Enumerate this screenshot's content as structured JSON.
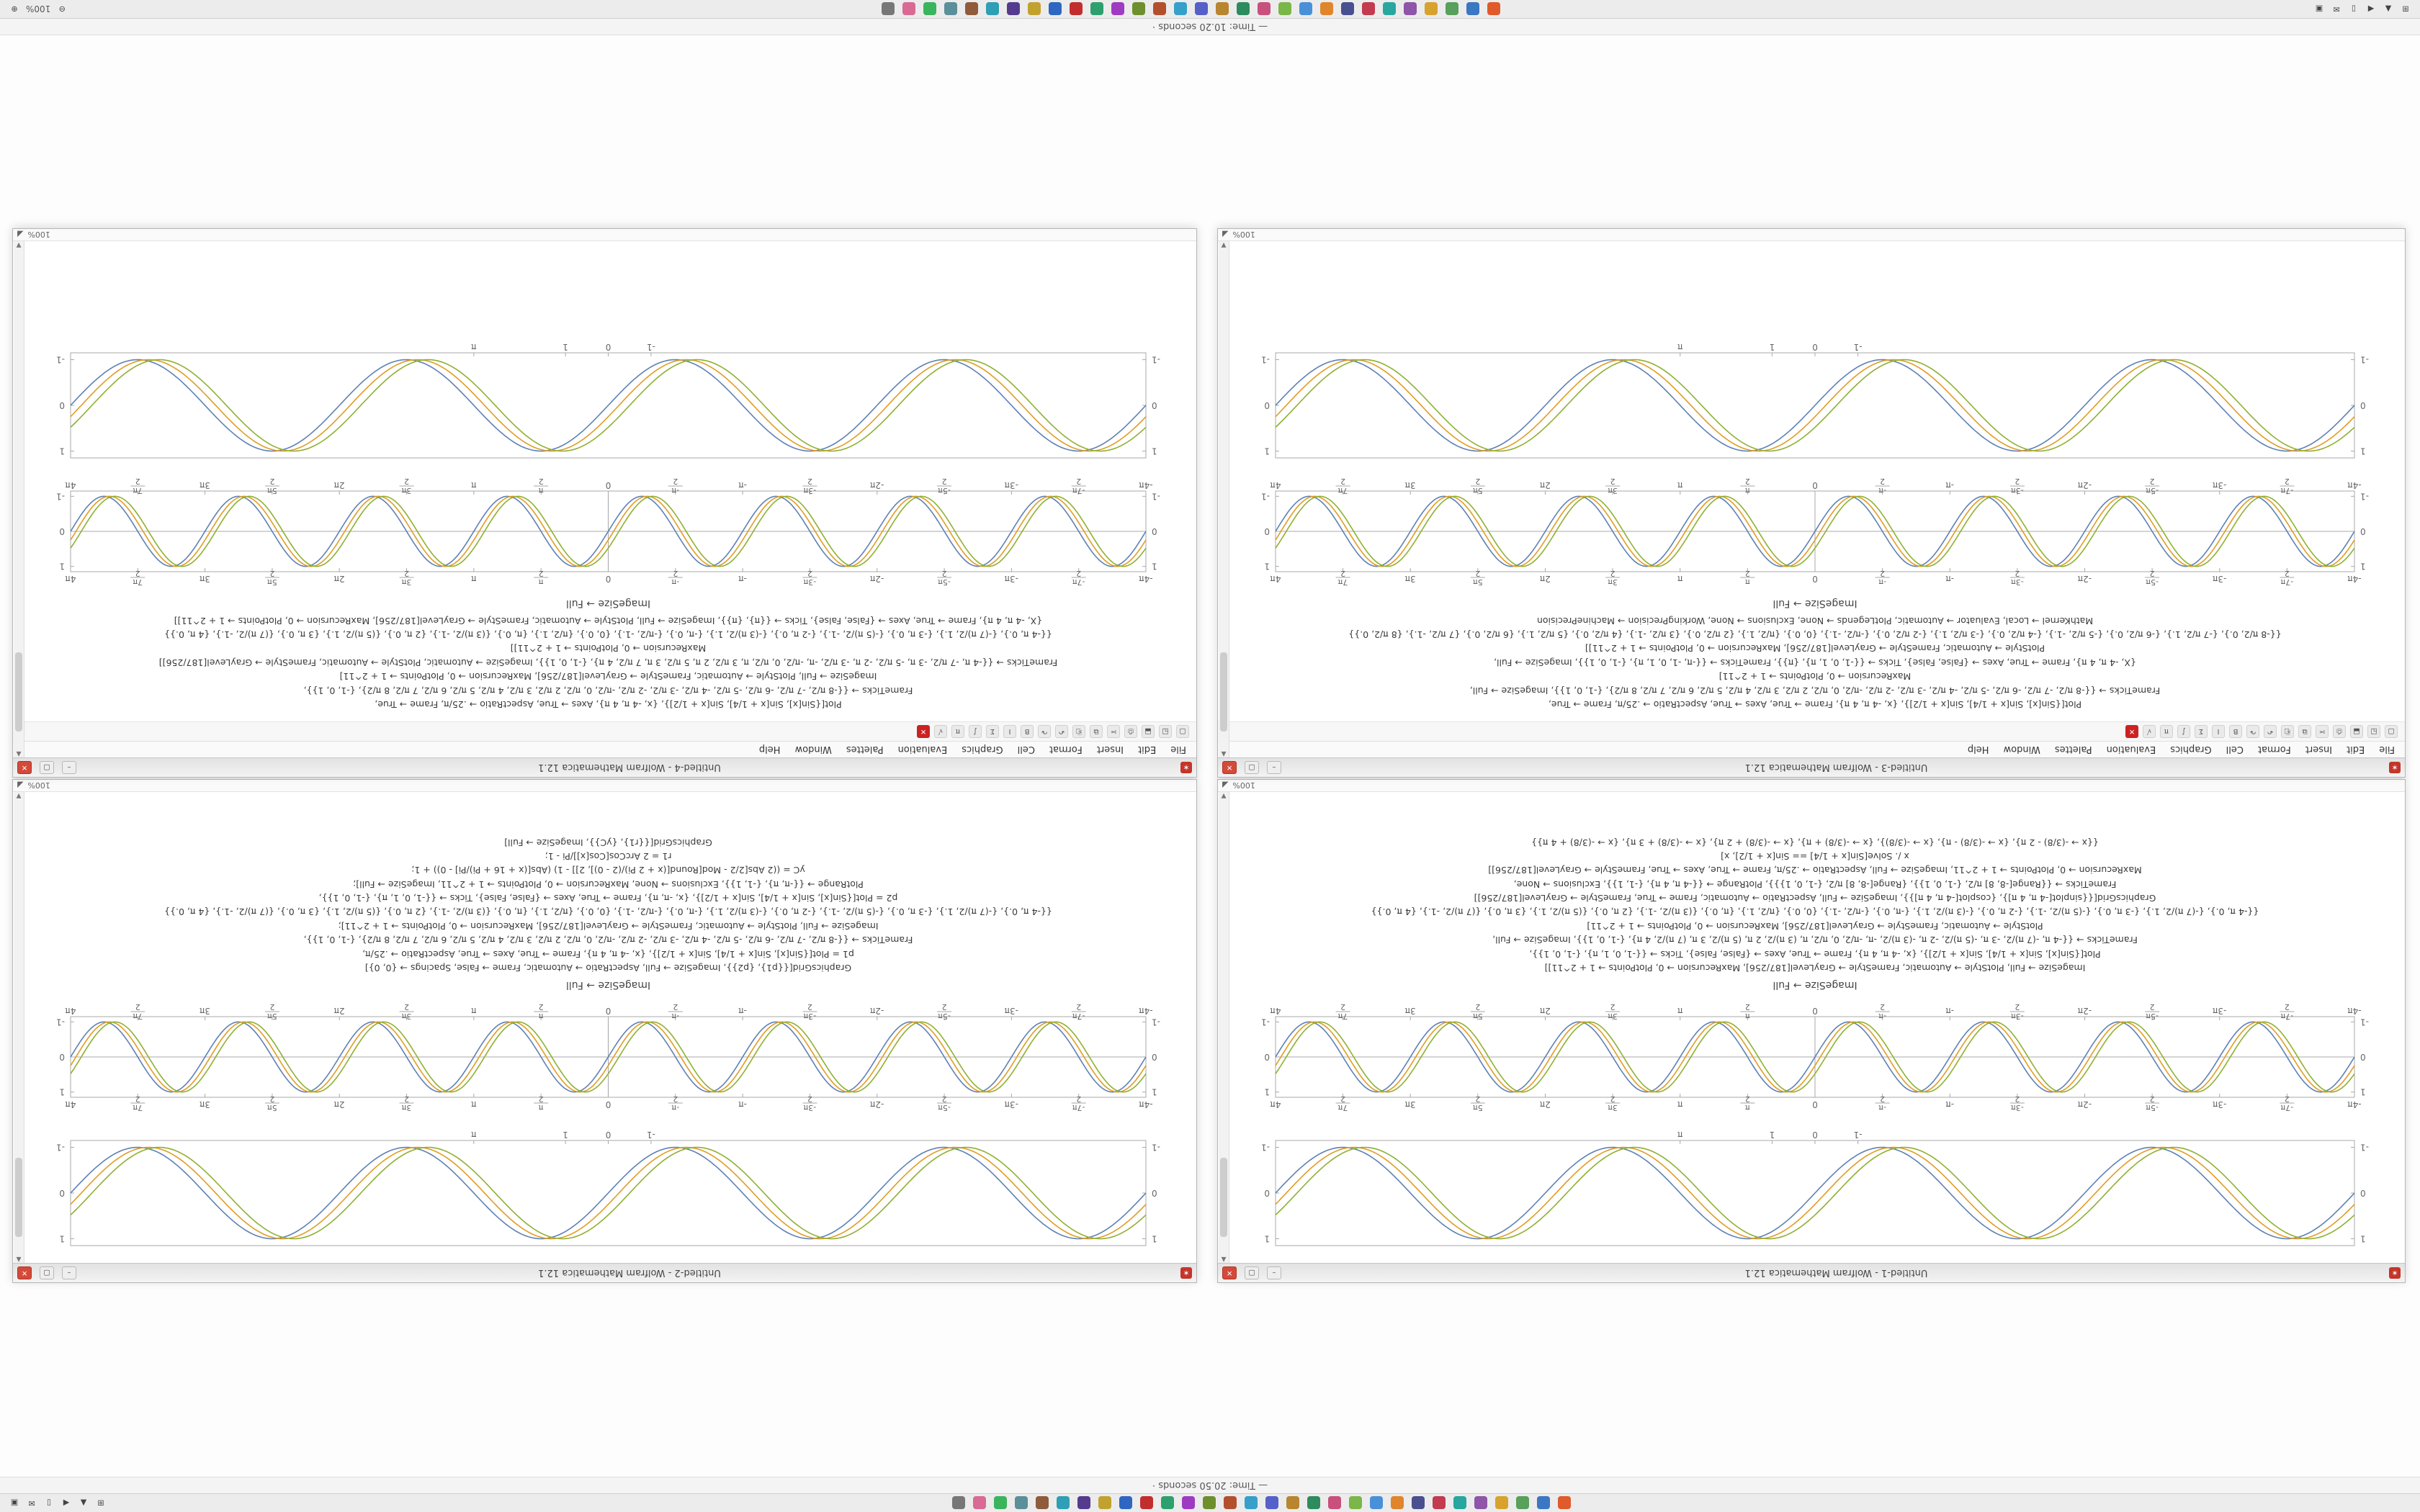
{
  "app": "Wolfram Mathematica 12.1",
  "status": {
    "magnification": "100%"
  },
  "top_bar": {
    "text": "— Time: 20.50 seconds ·"
  },
  "bottom_bar": {
    "text": "— Time: 10.20 seconds ·"
  },
  "window_chrome": {
    "spikey": "✶",
    "minimize": "–",
    "maximize": "▢",
    "close": "✕",
    "scroll_up": "▲",
    "scroll_down": "▼",
    "resize_grip": "◢"
  },
  "menu": {
    "items": [
      "File",
      "Edit",
      "Insert",
      "Format",
      "Cell",
      "Graphics",
      "Evaluation",
      "Palettes",
      "Window",
      "Help"
    ]
  },
  "toolbar": {
    "icons": [
      {
        "name": "new-notebook-icon",
        "glyph": "▢"
      },
      {
        "name": "open-icon",
        "glyph": "◱"
      },
      {
        "name": "save-icon",
        "glyph": "⬓"
      },
      {
        "name": "print-icon",
        "glyph": "⎙"
      },
      {
        "name": "cut-icon",
        "glyph": "✂"
      },
      {
        "name": "copy-icon",
        "glyph": "⧉"
      },
      {
        "name": "paste-icon",
        "glyph": "⎗"
      },
      {
        "name": "undo-icon",
        "glyph": "↶"
      },
      {
        "name": "redo-icon",
        "glyph": "↷"
      },
      {
        "name": "bold-icon",
        "glyph": "B"
      },
      {
        "name": "italic-icon",
        "glyph": "I"
      },
      {
        "name": "sum-icon",
        "glyph": "Σ"
      },
      {
        "name": "integral-icon",
        "glyph": "∫"
      },
      {
        "name": "pi-icon",
        "glyph": "π"
      },
      {
        "name": "sqrt-icon",
        "glyph": "√"
      },
      {
        "name": "abort-evaluation-icon",
        "glyph": "✕",
        "color": "#cc2222"
      }
    ]
  },
  "windows": [
    {
      "title": "Untitled-1 - Wolfram Mathematica 12.1"
    },
    {
      "title": "Untitled-2 - Wolfram Mathematica 12.1"
    },
    {
      "title": "Untitled-3 - Wolfram Mathematica 12.1"
    },
    {
      "title": "Untitled-4 - Wolfram Mathematica 12.1"
    }
  ],
  "captions": {
    "imagesize_full": "ImageSize → Full",
    "graphics_grid": "GraphicsGrid"
  },
  "code_blocks": {
    "upper_left": [
      "ImageSize → Full, PlotStyle → Automatic, FrameStyle → GrayLevel[187/256], MaxRecursion → 0, PlotPoints → 1 + 2^11]]",
      "Plot[{Sin[x], Sin[x + 1/4], Sin[x + 1/2]}, {x, -4 π, 4 π}, Frame → True, Axes → {False, False}, Ticks → {{-1, 0, 1, π}, {-1, 0, 1}},",
      "FrameTicks → {{-4 π, -(7 π)/2, -3 π, -(5 π)/2, -2 π, -(3 π)/2, -π, -π/2, 0, π/2, π, (3 π)/2, 2 π, (5 π)/2, 3 π, (7 π)/2, 4 π}, {-1, 0, 1}}, ImageSize → Full,",
      "PlotStyle → Automatic, FrameStyle → GrayLevel[187/256], MaxRecursion → 0, PlotPoints → 1 + 2^11]",
      "{{-4 π, 0.}, {-(7 π)/2, 1.}, {-3 π, 0.}, {-(5 π)/2, -1.}, {-2 π, 0.}, {-(3 π)/2, 1.}, {-π, 0.}, {-π/2, -1.}, {0, 0.}, {π/2, 1.}, {π, 0.}, {(3 π)/2, -1.}, {2 π, 0.}, {(5 π)/2, 1.}, {3 π, 0.}, {(7 π)/2, -1.}, {4 π, 0.}}",
      "GraphicsGrid[{{sinplot[-4 π, 4 π]}, {cosplot[-4 π, 4 π]}}, ImageSize → Full, AspectRatio → Automatic, Frame → True, FrameStyle → GrayLevel[187/256]]",
      "FrameTicks → {{Range[-8, 8] π/2, {-1, 0, 1}}, {Range[-8, 8] π/2, {-1, 0, 1}}}, PlotRange → {{-4 π, 4 π}, {-1, 1}}, Exclusions → None,",
      "MaxRecursion → 0, PlotPoints → 1 + 2^11, ImageSize → Full, AspectRatio → .25/π, Frame → True, Axes → True, FrameStyle → GrayLevel[187/256]]",
      "x /. Solve[Sin[x + 1/4] == Sin[x + 1/2], x]",
      "{{x → -(3/8) - 2 π}, {x → -(3/8) - π}, {x → -(3/8)}, {x → -(3/8) + π}, {x → -(3/8) + 2 π}, {x → -(3/8) + 3 π}, {x → -(3/8) + 4 π}}"
    ],
    "upper_right": [
      "GraphicsGrid[{{p1}, {p2}}, ImageSize → Full, AspectRatio → Automatic, Frame → False, Spacings → {0, 0}]",
      "p1 = Plot[{Sin[x], Sin[x + 1/4], Sin[x + 1/2]}, {x, -4 π, 4 π}, Frame → True, Axes → True, AspectRatio → .25/π,",
      "FrameTicks → {{-8 π/2, -7 π/2, -6 π/2, -5 π/2, -4 π/2, -3 π/2, -2 π/2, -π/2, 0, π/2, 2 π/2, 3 π/2, 4 π/2, 5 π/2, 6 π/2, 7 π/2, 8 π/2}, {-1, 0, 1}},",
      "ImageSize → Full, PlotStyle → Automatic, FrameStyle → GrayLevel[187/256], MaxRecursion → 0, PlotPoints → 1 + 2^11];",
      "{{-4 π, 0.}, {-(7 π)/2, 1.}, {-3 π, 0.}, {-(5 π)/2, -1.}, {-2 π, 0.}, {-(3 π)/2, 1.}, {-π, 0.}, {-π/2, -1.}, {0, 0.}, {π/2, 1.}, {π, 0.}, {(3 π)/2, -1.}, {2 π, 0.}, {(5 π)/2, 1.}, {3 π, 0.}, {(7 π)/2, -1.}, {4 π, 0.}}",
      "p2 = Plot[{Sin[x], Sin[x + 1/4], Sin[x + 1/2]}, {x, -π, π}, Frame → True, Axes → {False, False}, Ticks → {{-1, 0, 1, π}, {-1, 0, 1}},",
      "PlotRange → {{-π, π}, {-1, 1}}, Exclusions → None, MaxRecursion → 0, PlotPoints → 1 + 2^11, ImageSize → Full];",
      "yC = ((2 Abs[2/2 - Mod[Round[(x + 2 Pi)/(2 - 0)], 2]] - 1) (Abs[(x + 16 + Pi)/Pi] - 0)) + 1;",
      "r1 = 2 ArcCos[Cos[x]]/Pi - 1;",
      "GraphicsGrid[{{r1}, {yC}}, ImageSize → Full]"
    ],
    "lower_left": [
      "Plot[{Sin[x], Sin[x + 1/4], Sin[x + 1/2]}, {x, -4 π, 4 π}, Frame → True, Axes → True, AspectRatio → .25/π, Frame → True,",
      "FrameTicks → {{-8 π/2, -7 π/2, -6 π/2, -5 π/2, -4 π/2, -3 π/2, -2 π/2, -π/2, 0, π/2, 2 π/2, 3 π/2, 4 π/2, 5 π/2, 6 π/2, 7 π/2, 8 π/2}, {-1, 0, 1}}, ImageSize → Full,",
      "MaxRecursion → 0, PlotPoints → 1 + 2^11]",
      "{X, -4 π, 4 π}, Frame → True, Axes → {False, False}, Ticks → {{-1, 0, 1, π}, {π}}, FrameTicks → {{-π, -1, 0, 1, π}, {-1, 0, 1}}, ImageSize → Full,",
      "PlotStyle → Automatic, FrameStyle → GrayLevel[187/256], MaxRecursion → 0, PlotPoints → 1 + 2^11]]",
      "{{-8 π/2, 0.}, {-7 π/2, 1.}, {-6 π/2, 0.}, {-5 π/2, -1.}, {-4 π/2, 0.}, {-3 π/2, 1.}, {-2 π/2, 0.}, {-π/2, -1.}, {0, 0.}, {π/2, 1.}, {2 π/2, 0.}, {3 π/2, -1.}, {4 π/2, 0.}, {5 π/2, 1.}, {6 π/2, 0.}, {7 π/2, -1.}, {8 π/2, 0.}}",
      "MathKernel → Local, Evaluator → Automatic, PlotLegends → None, Exclusions → None, WorkingPrecision → MachinePrecision"
    ],
    "lower_right": [
      "Plot[{Sin[x], Sin[x + 1/4], Sin[x + 1/2]}, {x, -4 π, 4 π}, Axes → True, AspectRatio → .25/π, Frame → True,",
      "FrameTicks → {{-8 π/2, -7 π/2, -6 π/2, -5 π/2, -4 π/2, -3 π/2, -2 π/2, -π/2, 0, π/2, 2 π/2, 3 π/2, 4 π/2, 5 π/2, 6 π/2, 7 π/2, 8 π/2}, {-1, 0, 1}},",
      "ImageSize → Full, PlotStyle → Automatic, FrameStyle → GrayLevel[187/256], MaxRecursion → 0, PlotPoints → 1 + 2^11]",
      "FrameTicks → {{-4 π, -7 π/2, -3 π, -5 π/2, -2 π, -3 π/2, -π, -π/2, 0, π/2, π, 3 π/2, 2 π, 5 π/2, 3 π, 7 π/2, 4 π}, {-1, 0, 1}}, ImageSize → Automatic, PlotStyle → Automatic, FrameStyle → GrayLevel[187/256]]",
      "MaxRecursion → 0, PlotPoints → 1 + 2^11]]",
      "{{-4 π, 0.}, {-(7 π)/2, 1.}, {-3 π, 0.}, {-(5 π)/2, -1.}, {-2 π, 0.}, {-(3 π)/2, 1.}, {-π, 0.}, {-π/2, -1.}, {0, 0.}, {π/2, 1.}, {π, 0.}, {(3 π)/2, -1.}, {2 π, 0.}, {(5 π)/2, 1.}, {3 π, 0.}, {(7 π)/2, -1.}, {4 π, 0.}}",
      "{X, -4 π, 4 π}, Frame → True, Axes → {False, False}, Ticks → {{π}, {π}}, ImageSize → Full, PlotStyle → Automatic, FrameStyle → GrayLevel[187/256], MaxRecursion → 0, PlotPoints → 1 + 2^11]]"
    ]
  },
  "chart_data": [
    {
      "id": "framed",
      "type": "line",
      "title": "",
      "xlabel": "",
      "ylabel": "",
      "x_range": [
        -12.566,
        12.566
      ],
      "y_range": [
        -1,
        1
      ],
      "frame": true,
      "center_axes": false,
      "top_labels": false,
      "frame_color": "#a8a8a8",
      "freq": 1,
      "series": [
        {
          "name": "Sin[x]",
          "phase": 0,
          "color": "#5e81b5"
        },
        {
          "name": "Sin[x + 1/4]",
          "phase": 0.25,
          "color": "#e19c24"
        },
        {
          "name": "Sin[x + 1/2]",
          "phase": 0.5,
          "color": "#8fb032"
        }
      ],
      "x_ticks": [
        {
          "v": -1,
          "label": "-1"
        },
        {
          "v": 0,
          "label": "0"
        },
        {
          "v": 1,
          "label": "1"
        },
        {
          "v": 3.1416,
          "label": "π"
        }
      ],
      "y_ticks": [
        {
          "v": -1,
          "label": "-1"
        },
        {
          "v": 0,
          "label": "0"
        },
        {
          "v": 1,
          "label": "1"
        }
      ]
    },
    {
      "id": "pi",
      "type": "line",
      "title": "",
      "xlabel": "",
      "ylabel": "",
      "x_range": [
        -12.566,
        12.566
      ],
      "y_range": [
        -1,
        1
      ],
      "frame": true,
      "center_axes": true,
      "top_labels": true,
      "frame_color": "#a8a8a8",
      "freq": 2,
      "series": [
        {
          "name": "Sin[x]",
          "phase": 0,
          "color": "#5e81b5"
        },
        {
          "name": "Sin[x + 1/4]",
          "phase": 0.25,
          "color": "#e19c24"
        },
        {
          "name": "Sin[x + 1/2]",
          "phase": 0.5,
          "color": "#8fb032"
        }
      ],
      "x_ticks": [
        {
          "v": -12.566,
          "label": "-4π"
        },
        {
          "v": -10.996,
          "label": "-7π/2"
        },
        {
          "v": -9.4248,
          "label": "-3π"
        },
        {
          "v": -7.854,
          "label": "-5π/2"
        },
        {
          "v": -6.2832,
          "label": "-2π"
        },
        {
          "v": -4.7124,
          "label": "-3π/2"
        },
        {
          "v": -3.1416,
          "label": "-π"
        },
        {
          "v": -1.5708,
          "label": "-π/2"
        },
        {
          "v": 0,
          "label": "0"
        },
        {
          "v": 1.5708,
          "label": "π/2"
        },
        {
          "v": 3.1416,
          "label": "π"
        },
        {
          "v": 4.7124,
          "label": "3π/2"
        },
        {
          "v": 6.2832,
          "label": "2π"
        },
        {
          "v": 7.854,
          "label": "5π/2"
        },
        {
          "v": 9.4248,
          "label": "3π"
        },
        {
          "v": 10.996,
          "label": "7π/2"
        },
        {
          "v": 12.566,
          "label": "4π"
        }
      ],
      "y_ticks": [
        {
          "v": -1,
          "label": "-1"
        },
        {
          "v": 0,
          "label": "0"
        },
        {
          "v": 1,
          "label": "1"
        }
      ]
    }
  ],
  "panels": {
    "app_icons": [
      {
        "name": "taskbar-app-icon",
        "color": "#e05a2b"
      },
      {
        "name": "taskbar-app-icon",
        "color": "#3b77c2"
      },
      {
        "name": "taskbar-app-icon",
        "color": "#58a05b"
      },
      {
        "name": "taskbar-app-icon",
        "color": "#d8a22e"
      },
      {
        "name": "taskbar-app-icon",
        "color": "#8e55a8"
      },
      {
        "name": "taskbar-app-icon",
        "color": "#28a7a0"
      },
      {
        "name": "taskbar-app-icon",
        "color": "#c23b4e"
      },
      {
        "name": "taskbar-app-icon",
        "color": "#4a4f8f"
      },
      {
        "name": "taskbar-app-icon",
        "color": "#e0852b"
      },
      {
        "name": "taskbar-app-icon",
        "color": "#4a90d9"
      },
      {
        "name": "taskbar-app-icon",
        "color": "#7ab648"
      },
      {
        "name": "taskbar-app-icon",
        "color": "#c94f7c"
      },
      {
        "name": "taskbar-app-icon",
        "color": "#2c8c5d"
      },
      {
        "name": "taskbar-app-icon",
        "color": "#b8862e"
      },
      {
        "name": "taskbar-app-icon",
        "color": "#5560c9"
      },
      {
        "name": "taskbar-app-icon",
        "color": "#36a0c9"
      },
      {
        "name": "taskbar-app-icon",
        "color": "#b44f2e"
      },
      {
        "name": "taskbar-app-icon",
        "color": "#6d8f2e"
      },
      {
        "name": "taskbar-app-icon",
        "color": "#9f3bc2"
      },
      {
        "name": "taskbar-app-icon",
        "color": "#2ea06e"
      },
      {
        "name": "taskbar-app-icon",
        "color": "#c22e2e"
      },
      {
        "name": "taskbar-app-icon",
        "color": "#2e66c2"
      },
      {
        "name": "taskbar-app-icon",
        "color": "#c2a22e"
      },
      {
        "name": "taskbar-app-icon",
        "color": "#553b8e"
      },
      {
        "name": "taskbar-app-icon",
        "color": "#2e9fb4"
      },
      {
        "name": "taskbar-app-icon",
        "color": "#8f5b3b"
      },
      {
        "name": "taskbar-app-icon",
        "color": "#5b8f99"
      },
      {
        "name": "taskbar-app-icon",
        "color": "#3bb45e"
      },
      {
        "name": "taskbar-app-icon",
        "color": "#d86a94"
      },
      {
        "name": "taskbar-app-icon",
        "color": "#777777"
      }
    ],
    "tray_icons": [
      {
        "name": "launcher-icon",
        "glyph": "⊞"
      },
      {
        "name": "network-icon",
        "glyph": "▲"
      },
      {
        "name": "volume-icon",
        "glyph": "◀"
      },
      {
        "name": "battery-icon",
        "glyph": "▯"
      },
      {
        "name": "mail-icon",
        "glyph": "✉"
      },
      {
        "name": "clipboard-icon",
        "glyph": "▣"
      }
    ],
    "zoom": {
      "minus": "⊖",
      "level": "100%",
      "plus": "⊕"
    }
  }
}
